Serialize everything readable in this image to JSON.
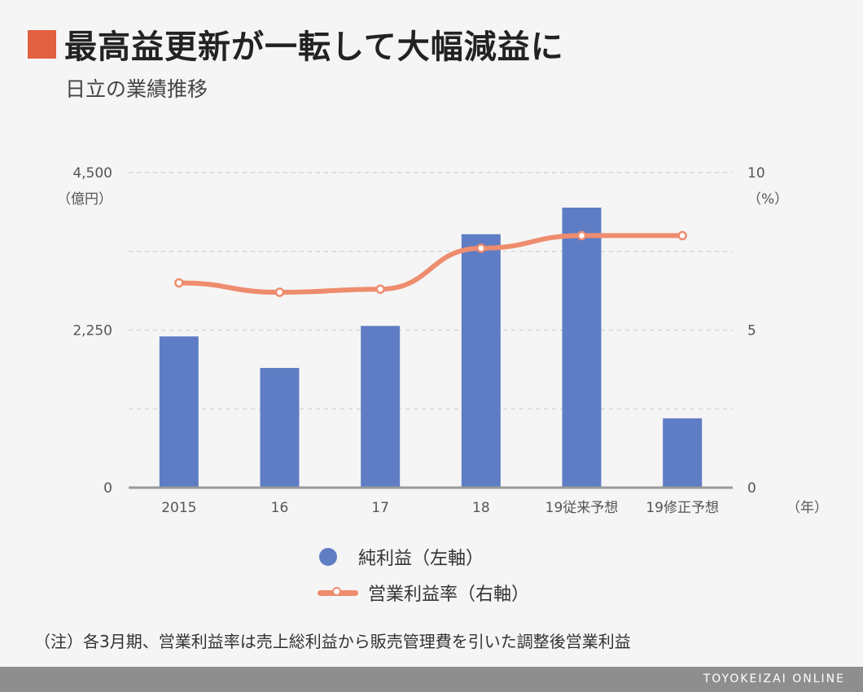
{
  "header": {
    "title": "最高益更新が一転して大幅減益に",
    "subtitle": "日立の業績推移"
  },
  "colors": {
    "accent": "#e2603f",
    "bar": "#5f7dc4",
    "line": "#ee8c6e",
    "gridline": "#d2d2d2",
    "baseline": "#9a9a9a"
  },
  "chart_data": {
    "type": "bar+line",
    "categories": [
      "2015",
      "16",
      "17",
      "18",
      "19従来予想",
      "19修正予想"
    ],
    "series": [
      {
        "name": "純利益（左軸）",
        "type": "bar",
        "axis": "left",
        "values": [
          2160,
          1710,
          2310,
          3620,
          4000,
          990
        ]
      },
      {
        "name": "営業利益率（右軸）",
        "type": "line",
        "axis": "right",
        "values": [
          6.5,
          6.2,
          6.3,
          7.6,
          8.0,
          8.0
        ]
      }
    ],
    "left_axis": {
      "unit": "（億円）",
      "ylim": [
        0,
        4500
      ],
      "ticks": [
        0,
        2250,
        4500
      ],
      "tick_labels": [
        "0",
        "2,250",
        "4,500"
      ]
    },
    "right_axis": {
      "unit": "（%）",
      "ylim": [
        0,
        10
      ],
      "ticks": [
        0,
        5,
        10
      ],
      "tick_labels": [
        "0",
        "5",
        "10"
      ]
    },
    "x_unit": "（年）",
    "grid": true,
    "legend_position": "bottom"
  },
  "note": "（注）各3月期、営業利益率は売上総利益から販売管理費を引いた調整後営業利益",
  "footer": {
    "brand": "TOYOKEIZAI ONLINE"
  }
}
